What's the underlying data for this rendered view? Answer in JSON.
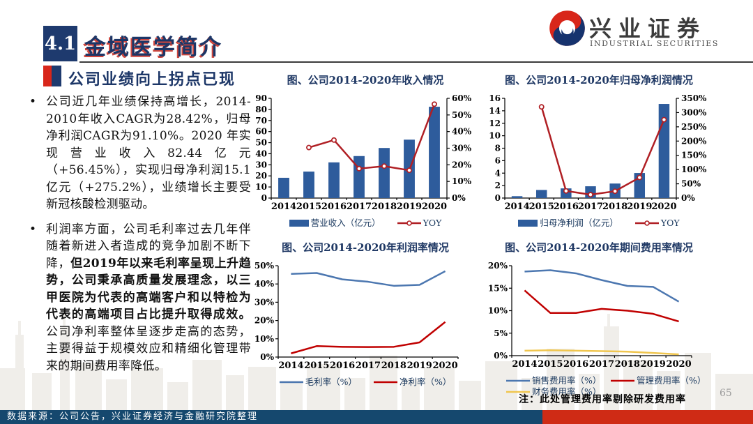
{
  "slide": {
    "section_number": "4.1",
    "section_title": "金域医学简介",
    "subtitle": "公司业绩向上拐点已现",
    "page_number": "65",
    "source": "数据来源：公司公告，兴业证券经济与金融研究院整理"
  },
  "logo": {
    "name_cn": "兴业证券",
    "name_en": "INDUSTRIAL SECURITIES"
  },
  "bullets": [
    {
      "segments": [
        {
          "text": "公司近几年业绩保持高增长，2014-2010年收入CAGR为28.42%，归母净利润CAGR为91.10%。2020 年实现营业收入82.44亿元（+56.45%），实现归母净利润15.1亿元（+275.2%），业绩增长主要受新冠核酸检测驱动。",
          "bold": false
        }
      ]
    },
    {
      "segments": [
        {
          "text": "利润率方面，公司毛利率过去几年伴随着新进入者造成的竞争加剧不断下降，",
          "bold": false
        },
        {
          "text": "但2019年以来毛利率呈现上升趋势，公司秉承高质量发展理念，以三甲医院为代表的高端客户和以特检为代表的高端项目占比提升取得成效。",
          "bold": true
        },
        {
          "text": "公司净利率整体呈逐步走高的态势，主要得益于规模效应和精细化管理带来的期间费用率降低。",
          "bold": false
        }
      ]
    }
  ],
  "chart_data": [
    {
      "type": "bar+line",
      "title": "图、公司2014-2020年收入情况",
      "categories": [
        "2014",
        "2015",
        "2016",
        "2017",
        "2018",
        "2019",
        "2020"
      ],
      "series": [
        {
          "name": "营业收入（亿元）",
          "kind": "bar",
          "axis": "left",
          "color": "#2E5C9C",
          "values": [
            18.3,
            23.9,
            32.2,
            37.9,
            45.2,
            52.7,
            82.4
          ]
        },
        {
          "name": "YOY",
          "kind": "line",
          "axis": "right",
          "color": "#B01F24",
          "marker": true,
          "values": [
            null,
            30.4,
            34.9,
            17.7,
            19.2,
            16.7,
            56.5
          ]
        }
      ],
      "left_axis": {
        "min": 0,
        "max": 90,
        "step": 10,
        "suffix": ""
      },
      "right_axis": {
        "min": 0,
        "max": 60,
        "step": 10,
        "suffix": "%"
      },
      "grid": false,
      "legend_position": "bottom-center"
    },
    {
      "type": "bar+line",
      "title": "图、公司2014-2020年归母净利润情况",
      "categories": [
        "2014",
        "2015",
        "2016",
        "2017",
        "2018",
        "2019",
        "2020"
      ],
      "series": [
        {
          "name": "归母净利润（亿元）",
          "kind": "bar",
          "axis": "left",
          "color": "#2E5C9C",
          "values": [
            0.3,
            1.3,
            1.55,
            1.89,
            2.33,
            4.02,
            15.1
          ]
        },
        {
          "name": "YOY",
          "kind": "line",
          "axis": "right",
          "color": "#B01F24",
          "marker": true,
          "values": [
            null,
            320,
            25,
            12,
            24,
            72,
            275
          ]
        }
      ],
      "left_axis": {
        "min": 0,
        "max": 16,
        "step": 2,
        "suffix": ""
      },
      "right_axis": {
        "min": 0,
        "max": 350,
        "step": 50,
        "suffix": "%"
      },
      "grid": false,
      "legend_position": "bottom-center"
    },
    {
      "type": "line",
      "title": "图、公司2014-2020年利润率情况",
      "categories": [
        "2014",
        "2015",
        "2016",
        "2017",
        "2018",
        "2019",
        "2020"
      ],
      "series": [
        {
          "name": "毛利率（%）",
          "kind": "line",
          "axis": "left",
          "color": "#4C77B0",
          "marker": false,
          "values": [
            45.5,
            46.0,
            42.5,
            41.2,
            39.0,
            39.5,
            47.0
          ]
        },
        {
          "name": "净利率（%）",
          "kind": "line",
          "axis": "left",
          "color": "#C00000",
          "marker": false,
          "values": [
            2.0,
            6.0,
            5.6,
            5.5,
            5.6,
            8.0,
            19.2
          ]
        }
      ],
      "left_axis": {
        "min": 0,
        "max": 50,
        "step": 10,
        "suffix": "%"
      },
      "grid": false,
      "legend_position": "bottom-center"
    },
    {
      "type": "line",
      "title": "图、公司2014-2020年期间费用率情况",
      "categories": [
        "2014",
        "2015",
        "2016",
        "2017",
        "2018",
        "2019",
        "2020"
      ],
      "series": [
        {
          "name": "销售费用率（%）",
          "kind": "line",
          "axis": "left",
          "color": "#4C77B0",
          "marker": false,
          "values": [
            18.7,
            19.0,
            18.3,
            16.8,
            15.5,
            15.3,
            12.0
          ]
        },
        {
          "name": "管理费用率（%）",
          "kind": "line",
          "axis": "left",
          "color": "#C00000",
          "marker": false,
          "values": [
            14.5,
            9.5,
            9.5,
            10.4,
            10.0,
            9.3,
            7.6
          ]
        },
        {
          "name": "财务费用率（%）",
          "kind": "line",
          "axis": "left",
          "color": "#F0C64F",
          "marker": false,
          "values": [
            1.1,
            1.2,
            1.1,
            1.0,
            0.9,
            0.6,
            0.3
          ]
        }
      ],
      "left_axis": {
        "min": 0,
        "max": 20,
        "step": 5,
        "suffix": "%"
      },
      "grid": false,
      "legend_position": "bottom-two-columns",
      "note": "注：此处管理费用率剔除研发费用率"
    }
  ],
  "colors": {
    "bar_blue": "#2E5C9C",
    "yoy_red": "#B01F24",
    "line_blue": "#4C77B0",
    "line_red": "#C00000",
    "line_yellow": "#F0C64F",
    "navy_text": "#1C3667",
    "accent_red": "#D8261A",
    "footer_blue": "#15486E",
    "footer_red": "#CF2B15"
  }
}
